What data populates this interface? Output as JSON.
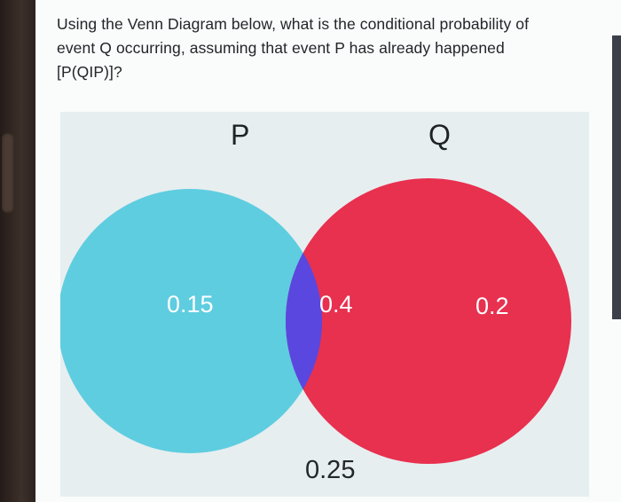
{
  "question": {
    "text": "Using the Venn Diagram below, what is the conditional probability of event Q occurring, assuming that event P has already happened [P(QIP)]?"
  },
  "venn": {
    "set_p_label": "P",
    "set_q_label": "Q",
    "only_p_value": "0.15",
    "intersection_value": "0.4",
    "only_q_value": "0.2",
    "outside_value": "0.25",
    "colors": {
      "set_p": "#5fcde0",
      "set_q": "#e8304f",
      "intersection": "#5a47e0",
      "background": "#e7eef0"
    }
  }
}
